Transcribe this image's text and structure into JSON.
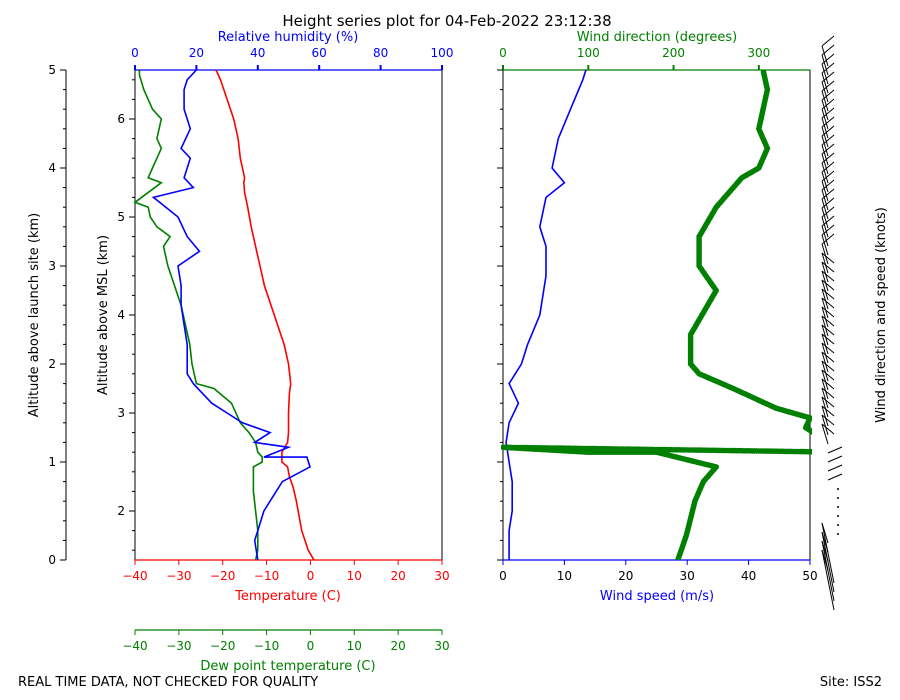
{
  "title": "Height series plot for 04-Feb-2022 23:12:38",
  "footer": {
    "left": "REAL TIME DATA, NOT CHECKED FOR QUALITY",
    "right": "Site: ISS2"
  },
  "colors": {
    "red": "#ff0000",
    "green": "#008000",
    "blue": "#0000ff",
    "black": "#000000"
  },
  "chart_data": [
    {
      "type": "line",
      "panel": "thermo",
      "axes": {
        "temperature": {
          "label": "Temperature (C)",
          "range": [
            -40,
            30
          ],
          "ticks": [
            "−40",
            "−30",
            "−20",
            "−10",
            "0",
            "10",
            "20",
            "30"
          ]
        },
        "dewpoint": {
          "label": "Dew point temperature (C)",
          "range": [
            -40,
            30
          ],
          "ticks": [
            "−40",
            "−30",
            "−20",
            "−10",
            "0",
            "10",
            "20",
            "30"
          ]
        },
        "rh": {
          "label": "Relative humidity (%)",
          "range": [
            0,
            100
          ],
          "ticks": [
            "0",
            "20",
            "40",
            "60",
            "80",
            "100"
          ]
        },
        "alt_site": {
          "label": "Altitude above launch site (km)",
          "range": [
            0,
            5
          ],
          "ticks": [
            "0",
            "1",
            "2",
            "3",
            "4",
            "5"
          ]
        },
        "alt_msl": {
          "label": "Altitude above MSL (km)",
          "ticks": [
            "2",
            "3",
            "4",
            "5",
            "6"
          ],
          "tick_values": [
            2,
            3,
            4,
            5,
            6
          ],
          "offset_km": 1.5
        }
      },
      "series": [
        {
          "name": "Temperature",
          "color": "#ff0000",
          "x_axis": "temperature",
          "points": [
            [
              0.8,
              0
            ],
            [
              -0.5,
              0.1
            ],
            [
              -2,
              0.3
            ],
            [
              -3.2,
              0.6
            ],
            [
              -4,
              0.75
            ],
            [
              -4.8,
              0.85
            ],
            [
              -5.2,
              0.95
            ],
            [
              -6.5,
              1
            ],
            [
              -6.5,
              1.1
            ],
            [
              -5.2,
              1.2
            ],
            [
              -5,
              1.3
            ],
            [
              -5,
              1.5
            ],
            [
              -4.8,
              1.7
            ],
            [
              -4.5,
              1.8
            ],
            [
              -5,
              2
            ],
            [
              -6,
              2.2
            ],
            [
              -7.5,
              2.4
            ],
            [
              -9,
              2.6
            ],
            [
              -10.5,
              2.8
            ],
            [
              -11.5,
              3
            ],
            [
              -12.5,
              3.2
            ],
            [
              -13.5,
              3.4
            ],
            [
              -14.3,
              3.6
            ],
            [
              -15,
              3.75
            ],
            [
              -15.2,
              3.85
            ],
            [
              -15,
              3.9
            ],
            [
              -16,
              4.1
            ],
            [
              -16.5,
              4.3
            ],
            [
              -17.5,
              4.5
            ],
            [
              -19,
              4.7
            ],
            [
              -20.5,
              4.9
            ],
            [
              -21.5,
              5
            ]
          ]
        },
        {
          "name": "Dew point",
          "color": "#008000",
          "x_axis": "temperature",
          "points": [
            [
              -12.5,
              0
            ],
            [
              -12,
              0.1
            ],
            [
              -12,
              0.3
            ],
            [
              -12.5,
              0.5
            ],
            [
              -13,
              0.7
            ],
            [
              -13,
              0.95
            ],
            [
              -11,
              1
            ],
            [
              -11,
              1.05
            ],
            [
              -12,
              1.1
            ],
            [
              -12.5,
              1.2
            ],
            [
              -14,
              1.3
            ],
            [
              -16,
              1.4
            ],
            [
              -18,
              1.6
            ],
            [
              -22,
              1.75
            ],
            [
              -26,
              1.8
            ],
            [
              -27,
              2
            ],
            [
              -27.5,
              2.2
            ],
            [
              -28.5,
              2.4
            ],
            [
              -29.5,
              2.6
            ],
            [
              -31,
              2.8
            ],
            [
              -32.5,
              3
            ],
            [
              -33.5,
              3.2
            ],
            [
              -32,
              3.3
            ],
            [
              -35,
              3.4
            ],
            [
              -36.5,
              3.5
            ],
            [
              -37,
              3.6
            ],
            [
              -40,
              3.65
            ],
            [
              -34,
              3.85
            ],
            [
              -37,
              3.9
            ],
            [
              -36,
              4.0
            ],
            [
              -34,
              4.2
            ],
            [
              -35,
              4.3
            ],
            [
              -34,
              4.5
            ],
            [
              -36,
              4.6
            ],
            [
              -38,
              4.8
            ],
            [
              -39,
              4.95
            ],
            [
              -39,
              5
            ]
          ]
        }
      ]
    },
    {
      "type": "line",
      "panel": "rh",
      "series": [
        {
          "name": "Relative humidity",
          "color": "#0000ff",
          "x_axis": "rh",
          "points": [
            [
              40,
              0
            ],
            [
              39,
              0.2
            ],
            [
              40,
              0.3
            ],
            [
              42,
              0.5
            ],
            [
              45,
              0.65
            ],
            [
              48,
              0.8
            ],
            [
              57,
              0.95
            ],
            [
              56,
              1.05
            ],
            [
              42,
              1.05
            ],
            [
              50,
              1.15
            ],
            [
              39,
              1.2
            ],
            [
              44,
              1.3
            ],
            [
              35,
              1.4
            ],
            [
              30,
              1.5
            ],
            [
              25,
              1.6
            ],
            [
              22,
              1.7
            ],
            [
              19,
              1.8
            ],
            [
              17,
              1.9
            ],
            [
              17,
              2.2
            ],
            [
              16,
              2.4
            ],
            [
              15,
              2.6
            ],
            [
              15,
              2.8
            ],
            [
              14,
              3.0
            ],
            [
              21,
              3.15
            ],
            [
              17,
              3.3
            ],
            [
              14,
              3.5
            ],
            [
              8,
              3.65
            ],
            [
              6,
              3.7
            ],
            [
              19,
              3.8
            ],
            [
              16,
              3.9
            ],
            [
              18,
              4.1
            ],
            [
              15,
              4.2
            ],
            [
              18,
              4.4
            ],
            [
              16,
              4.6
            ],
            [
              16,
              4.8
            ],
            [
              17,
              4.9
            ],
            [
              20,
              5
            ]
          ]
        }
      ]
    },
    {
      "type": "scatter",
      "panel": "wind",
      "axes": {
        "speed": {
          "label": "Wind speed (m/s)",
          "range": [
            0,
            50
          ],
          "ticks": [
            "0",
            "10",
            "20",
            "30",
            "40",
            "50"
          ]
        },
        "direction": {
          "label": "Wind direction (degrees)",
          "range": [
            0,
            360
          ],
          "ticks": [
            "0",
            "100",
            "200",
            "300"
          ]
        },
        "barbs": {
          "label": "Wind direction and speed (knots)"
        }
      },
      "series": [
        {
          "name": "Wind speed",
          "color": "#0000ff",
          "x_axis": "speed",
          "points": [
            [
              1,
              0
            ],
            [
              1,
              0.3
            ],
            [
              1.5,
              0.5
            ],
            [
              1.5,
              0.8
            ],
            [
              1,
              1.0
            ],
            [
              0.5,
              1.2
            ],
            [
              1,
              1.4
            ],
            [
              2.5,
              1.6
            ],
            [
              1,
              1.8
            ],
            [
              3,
              2.0
            ],
            [
              4,
              2.2
            ],
            [
              6,
              2.5
            ],
            [
              7,
              2.9
            ],
            [
              7,
              3.2
            ],
            [
              6,
              3.4
            ],
            [
              7,
              3.7
            ],
            [
              10,
              3.85
            ],
            [
              8,
              4.0
            ],
            [
              9,
              4.3
            ],
            [
              11,
              4.6
            ],
            [
              13,
              4.9
            ],
            [
              13.5,
              5
            ]
          ]
        },
        {
          "name": "Wind direction",
          "color": "#008000",
          "x_axis": "direction",
          "points": [
            [
              205,
              0
            ],
            [
              215,
              0.25
            ],
            [
              225,
              0.6
            ],
            [
              235,
              0.8
            ],
            [
              250,
              0.95
            ],
            [
              180,
              1.1
            ],
            [
              100,
              1.1
            ],
            [
              0,
              1.15
            ],
            [
              400,
              1.1
            ],
            [
              355,
              1.35
            ],
            [
              360,
              1.45
            ],
            [
              320,
              1.55
            ],
            [
              270,
              1.75
            ],
            [
              230,
              1.9
            ],
            [
              220,
              2.0
            ],
            [
              220,
              2.3
            ],
            [
              250,
              2.75
            ],
            [
              230,
              3.0
            ],
            [
              230,
              3.3
            ],
            [
              250,
              3.6
            ],
            [
              280,
              3.9
            ],
            [
              300,
              4.0
            ],
            [
              310,
              4.2
            ],
            [
              300,
              4.4
            ],
            [
              310,
              4.8
            ],
            [
              305,
              5
            ]
          ]
        }
      ]
    }
  ]
}
